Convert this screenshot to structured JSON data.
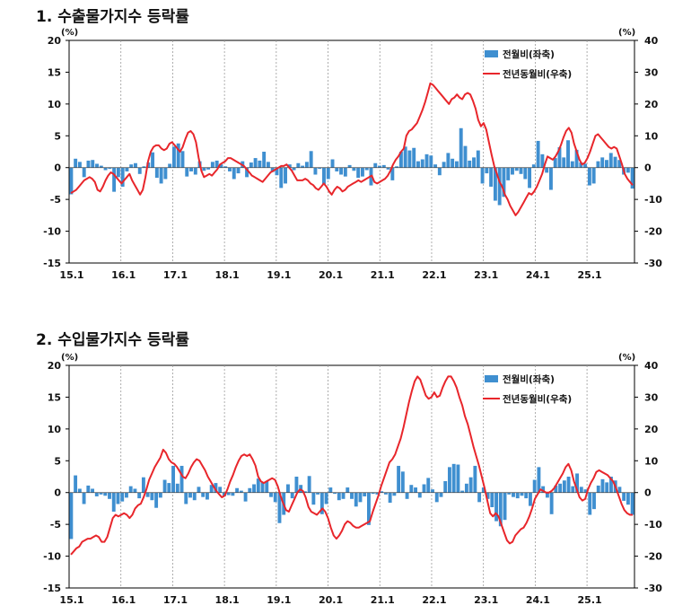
{
  "colors": {
    "bar": "#3f8fd0",
    "line": "#e8262b",
    "axis": "#000000",
    "grid": "#9a9a9a"
  },
  "chart_data": [
    {
      "type": "bar+line",
      "title": "1. 수출물가지수 등락률",
      "left_unit": "(%)",
      "right_unit": "(%)",
      "left_ylim": [
        -15,
        20
      ],
      "right_ylim": [
        -30,
        40
      ],
      "left_ticks": [
        "20",
        "15",
        "10",
        "5",
        "0",
        "-5",
        "-10",
        "-15"
      ],
      "right_ticks": [
        "40",
        "30",
        "20",
        "10",
        "0",
        "-10",
        "-20",
        "-30"
      ],
      "x_labels": [
        "15.1",
        "16.1",
        "17.1",
        "18.1",
        "19.1",
        "20.1",
        "21.1",
        "22.1",
        "23.1",
        "24.1",
        "25.1"
      ],
      "legend": [
        "전월비(좌축)",
        "전년동월비(우축)"
      ],
      "series": [
        {
          "name": "전월비(좌축)",
          "axis": "left",
          "values": [
            -4.2,
            1.4,
            0.9,
            -1.5,
            1.1,
            1.2,
            0.6,
            0.3,
            -0.4,
            -0.2,
            -3.8,
            -1.5,
            -3.0,
            -0.6,
            0.5,
            0.7,
            -1.0,
            0.2,
            0.8,
            2.4,
            -1.6,
            -2.5,
            -1.8,
            0.6,
            3.3,
            3.8,
            2.6,
            -1.4,
            -0.6,
            -1.1,
            1.0,
            -0.5,
            -0.3,
            0.9,
            1.1,
            0.5,
            0.2,
            -0.6,
            -1.8,
            -0.9,
            1.0,
            -1.5,
            0.8,
            1.5,
            1.1,
            2.5,
            0.9,
            -0.7,
            -1.2,
            -3.2,
            -2.5,
            0.5,
            -0.4,
            0.7,
            0.3,
            0.9,
            2.6,
            -1.1,
            -0.2,
            -2.6,
            -1.8,
            1.3,
            -0.6,
            -1.1,
            -1.4,
            0.4,
            -0.5,
            -1.6,
            -1.4,
            -0.4,
            -2.8,
            0.7,
            0.3,
            0.4,
            -0.3,
            -2.0,
            0.2,
            2.5,
            3.3,
            2.7,
            3.1,
            1.0,
            1.3,
            2.1,
            1.9,
            0.5,
            -1.2,
            0.9,
            2.3,
            1.4,
            1.0,
            6.2,
            3.4,
            1.1,
            1.6,
            2.7,
            -2.5,
            -0.9,
            -3.0,
            -5.2,
            -5.9,
            -4.6,
            -2.0,
            -1.1,
            -0.5,
            -1.0,
            -1.8,
            -3.2,
            0.5,
            4.2,
            2.1,
            -0.8,
            -3.5,
            1.5,
            3.2,
            1.6,
            4.3,
            1.0,
            2.8,
            0.8,
            0.6,
            -2.8,
            -2.5,
            1.0,
            1.6,
            1.2,
            2.3,
            1.7,
            1.2,
            -1.1,
            -0.8,
            -3.3
          ]
        },
        {
          "name": "전년동월비(우축)",
          "axis": "right",
          "values": [
            -8.0,
            -7.5,
            -7.0,
            -6.0,
            -5.0,
            -4.0,
            -3.5,
            -3.0,
            -3.5,
            -4.5,
            -7.0,
            -7.5,
            -6.0,
            -4.0,
            -2.5,
            -1.5,
            -2.0,
            -3.0,
            -4.0,
            -5.0,
            -4.0,
            -3.0,
            -2.0,
            -4.0,
            -5.5,
            -7.0,
            -8.5,
            -7.0,
            -3.0,
            2.0,
            5.0,
            6.5,
            7.0,
            7.0,
            6.0,
            5.5,
            6.0,
            7.5,
            8.0,
            7.0,
            6.0,
            5.0,
            6.5,
            9.0,
            11.0,
            11.5,
            10.5,
            8.0,
            3.0,
            -1.0,
            -3.0,
            -2.5,
            -2.0,
            -2.5,
            -1.5,
            -0.5,
            1.0,
            1.5,
            2.0,
            3.0,
            3.0,
            2.5,
            2.0,
            1.5,
            1.0,
            0.5,
            -0.5,
            -1.5,
            -2.5,
            -3.0,
            -3.5,
            -4.0,
            -4.5,
            -3.5,
            -2.5,
            -1.5,
            -1.0,
            -0.5,
            0.0,
            0.5,
            0.5,
            1.0,
            0.0,
            -1.0,
            -2.5,
            -4.0,
            -4.0,
            -4.0,
            -3.5,
            -4.0,
            -5.0,
            -5.5,
            -6.5,
            -7.0,
            -6.0,
            -5.0,
            -6.0,
            -7.5,
            -8.5,
            -7.0,
            -6.0,
            -6.5,
            -7.5,
            -7.0,
            -6.0,
            -5.5,
            -5.0,
            -4.5,
            -4.0,
            -4.5,
            -4.0,
            -3.5,
            -3.0,
            -2.5,
            -4.5,
            -5.0,
            -4.5,
            -4.0,
            -3.5,
            -2.5,
            -1.0,
            1.0,
            2.5,
            3.5,
            5.0,
            6.0,
            10.0,
            11.5,
            12.0,
            13.0,
            14.0,
            16.0,
            18.0,
            20.5,
            23.5,
            26.5,
            26.0,
            25.0,
            24.0,
            23.0,
            22.0,
            21.0,
            20.0,
            21.5,
            22.0,
            23.0,
            22.0,
            21.5,
            23.0,
            23.5,
            23.0,
            21.0,
            18.5,
            15.0,
            13.0,
            14.0,
            12.0,
            8.0,
            4.0,
            0.5,
            -2.0,
            -4.5,
            -6.0,
            -8.5,
            -10.0,
            -12.0,
            -13.5,
            -15.0,
            -14.0,
            -12.5,
            -11.0,
            -9.5,
            -8.0,
            -8.5,
            -7.5,
            -6.0,
            -4.0,
            -2.0,
            1.0,
            3.5,
            3.0,
            2.5,
            3.5,
            5.0,
            7.0,
            9.5,
            11.5,
            12.5,
            11.0,
            7.5,
            5.0,
            2.5,
            1.0,
            1.5,
            3.0,
            5.0,
            7.5,
            10.0,
            10.5,
            9.5,
            8.5,
            7.5,
            6.5,
            6.0,
            6.5,
            6.0,
            3.5,
            1.0,
            -2.0,
            -3.5,
            -4.5,
            -5.5
          ]
        }
      ]
    },
    {
      "type": "bar+line",
      "title": "2. 수입물가지수 등락률",
      "left_unit": "(%)",
      "right_unit": "(%)",
      "left_ylim": [
        -15,
        20
      ],
      "right_ylim": [
        -30,
        40
      ],
      "left_ticks": [
        "20",
        "15",
        "10",
        "5",
        "0",
        "-5",
        "-10",
        "-15"
      ],
      "right_ticks": [
        "40",
        "30",
        "20",
        "10",
        "0",
        "-10",
        "-20",
        "-30"
      ],
      "x_labels": [
        "15.1",
        "16.1",
        "17.1",
        "18.1",
        "19.1",
        "20.1",
        "21.1",
        "22.1",
        "23.1",
        "24.1",
        "25.1"
      ],
      "legend": [
        "전월비(좌축)",
        "전년동월비(우축)"
      ],
      "series": [
        {
          "name": "전월비(좌축)",
          "axis": "left",
          "values": [
            -7.3,
            2.7,
            0.6,
            -1.8,
            1.1,
            0.6,
            -0.6,
            -0.3,
            -0.5,
            -1.0,
            -3.0,
            -1.8,
            -1.4,
            -0.8,
            1.0,
            0.6,
            -0.9,
            2.4,
            -0.7,
            -1.2,
            -2.4,
            -0.8,
            2.0,
            1.5,
            4.2,
            1.4,
            4.2,
            -1.8,
            -0.8,
            -1.2,
            0.9,
            -0.7,
            -1.1,
            1.2,
            1.5,
            0.9,
            -0.6,
            -0.4,
            -0.5,
            0.7,
            0.3,
            -1.4,
            0.7,
            1.3,
            2.2,
            1.6,
            1.8,
            -0.7,
            -1.5,
            -4.8,
            -3.5,
            1.3,
            -0.9,
            2.5,
            1.2,
            0.2,
            2.6,
            -1.9,
            -0.3,
            -3.4,
            -1.8,
            0.8,
            -0.2,
            -1.2,
            -1.0,
            0.8,
            -1.0,
            -2.2,
            -1.5,
            -0.6,
            -5.1,
            -0.2,
            -0.3,
            0.2,
            -0.3,
            -1.6,
            -0.5,
            4.2,
            3.3,
            -1.0,
            1.2,
            0.8,
            -0.8,
            1.3,
            2.3,
            0.5,
            -1.5,
            -0.7,
            1.8,
            4.0,
            4.5,
            4.4,
            0.3,
            1.4,
            2.4,
            4.2,
            -1.5,
            0.8,
            -1.0,
            -2.3,
            -4.5,
            -5.3,
            -4.3,
            -0.3,
            -0.7,
            -0.9,
            -0.5,
            -0.9,
            -2.1,
            2.0,
            4.0,
            1.0,
            -0.8,
            -3.4,
            1.1,
            1.4,
            1.9,
            2.5,
            1.0,
            3.0,
            0.9,
            0.5,
            -3.5,
            -2.6,
            1.1,
            2.1,
            1.6,
            2.5,
            1.9,
            0.9,
            -1.3,
            -1.9,
            -3.5
          ]
        },
        {
          "name": "전년동월비(우축)",
          "axis": "right",
          "values": [
            -19.5,
            -18.5,
            -17.5,
            -17.0,
            -15.5,
            -15.0,
            -14.5,
            -14.5,
            -14.0,
            -13.5,
            -14.0,
            -15.5,
            -15.5,
            -14.0,
            -11.0,
            -8.0,
            -7.0,
            -7.5,
            -7.0,
            -6.5,
            -7.0,
            -8.0,
            -7.0,
            -5.0,
            -4.0,
            -3.5,
            -1.5,
            1.0,
            4.0,
            6.0,
            8.0,
            9.5,
            11.0,
            13.5,
            12.5,
            10.5,
            9.5,
            9.0,
            8.0,
            6.5,
            5.0,
            4.5,
            6.0,
            8.0,
            9.5,
            10.5,
            10.0,
            8.5,
            7.0,
            5.0,
            3.5,
            2.0,
            0.5,
            -0.5,
            -1.5,
            -1.0,
            1.0,
            3.5,
            5.5,
            8.0,
            10.0,
            11.5,
            12.0,
            11.5,
            12.0,
            10.5,
            8.5,
            5.0,
            3.5,
            3.0,
            3.5,
            4.0,
            4.5,
            4.0,
            2.0,
            -1.0,
            -3.5,
            -5.5,
            -6.0,
            -4.0,
            -2.0,
            0.0,
            1.0,
            0.5,
            -1.5,
            -4.5,
            -6.0,
            -6.5,
            -7.0,
            -6.0,
            -5.0,
            -6.0,
            -8.0,
            -11.0,
            -13.5,
            -14.5,
            -13.5,
            -12.0,
            -10.0,
            -9.0,
            -9.5,
            -10.5,
            -11.0,
            -11.0,
            -10.5,
            -10.0,
            -9.5,
            -9.0,
            -6.0,
            -3.5,
            -1.0,
            2.0,
            4.5,
            7.0,
            9.5,
            10.5,
            12.0,
            14.5,
            17.0,
            20.5,
            24.5,
            28.5,
            32.0,
            35.0,
            36.5,
            35.5,
            33.0,
            30.5,
            29.5,
            30.0,
            31.5,
            30.0,
            30.5,
            33.0,
            35.0,
            36.5,
            36.5,
            35.0,
            33.0,
            30.0,
            27.5,
            24.0,
            21.5,
            18.0,
            14.5,
            11.5,
            8.5,
            5.0,
            1.5,
            -2.5,
            -6.5,
            -7.5,
            -6.5,
            -7.5,
            -10.0,
            -12.5,
            -15.0,
            -16.0,
            -15.5,
            -13.5,
            -12.5,
            -11.5,
            -11.0,
            -9.5,
            -7.5,
            -5.0,
            -2.0,
            -0.5,
            1.0,
            0.5,
            0.0,
            0.0,
            0.5,
            1.5,
            3.0,
            4.5,
            6.0,
            8.0,
            9.0,
            7.0,
            3.5,
            1.0,
            -1.5,
            -2.5,
            -2.0,
            1.0,
            3.0,
            4.5,
            6.5,
            7.0,
            6.5,
            6.0,
            5.5,
            4.5,
            3.5,
            1.5,
            -1.0,
            -3.5,
            -5.5,
            -6.5,
            -7.0,
            -7.0
          ]
        }
      ]
    }
  ]
}
